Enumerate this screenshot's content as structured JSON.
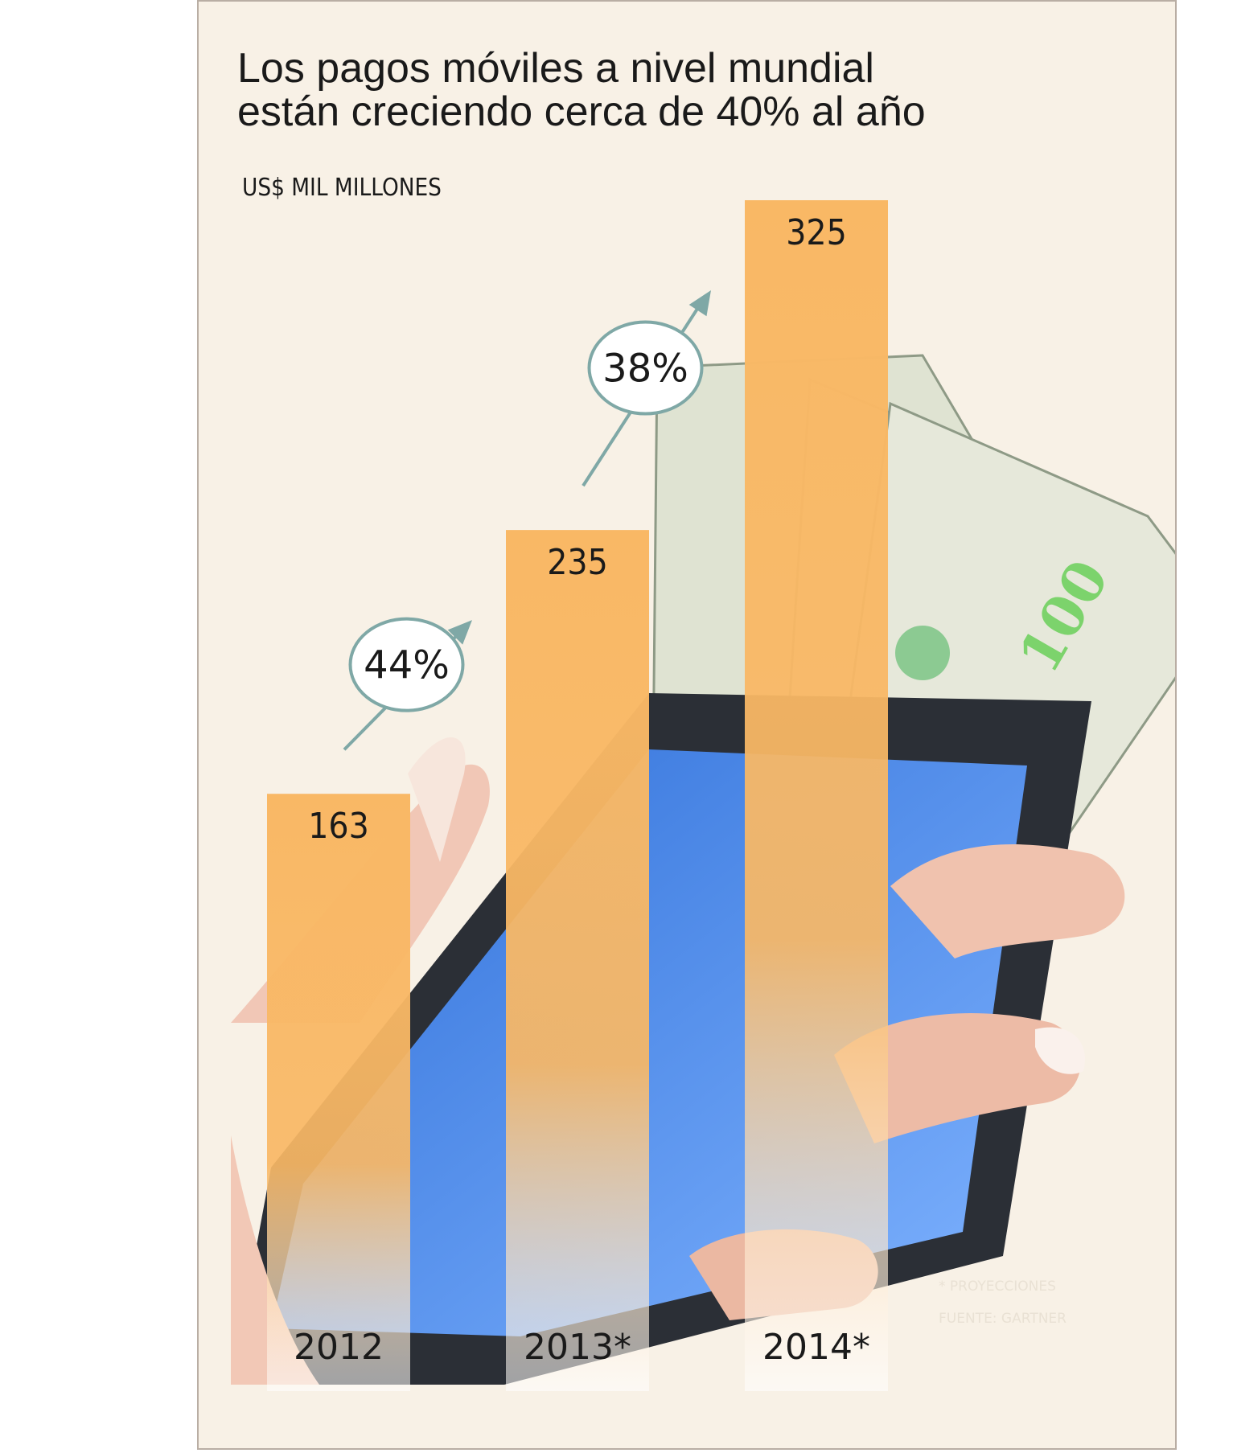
{
  "title_lines": [
    "Los pagos móviles a nivel mundial",
    "están creciendo cerca de 40% al año"
  ],
  "unit_label": "US$ MIL MILLONES",
  "footnotes": {
    "projections": "* PROYECCIONES",
    "source": "FUENTE: GARTNER"
  },
  "colors": {
    "bar_top": "#f9b865",
    "bar_bottom_tint": "#ffffff",
    "background": "#f8f1e6",
    "arrow": "#7fa8a6",
    "phone_screen": "#4f8ff0",
    "banknote": "#dfe3d2"
  },
  "illustration": {
    "description_icons": [
      "hand-holding-smartphone-icon",
      "dollar-banknotes-icon"
    ]
  },
  "chart_data": {
    "type": "bar",
    "categories": [
      "2012",
      "2013*",
      "2014*"
    ],
    "values": [
      163,
      235,
      325
    ],
    "value_labels": [
      "163",
      "235",
      "325"
    ],
    "growth_labels": [
      "44%",
      "38%"
    ],
    "title": "Los pagos móviles a nivel mundial están creciendo cerca de 40% al año",
    "ylabel": "US$ MIL MILLONES",
    "ylim": [
      0,
      325
    ],
    "grid": false,
    "legend": "none"
  }
}
